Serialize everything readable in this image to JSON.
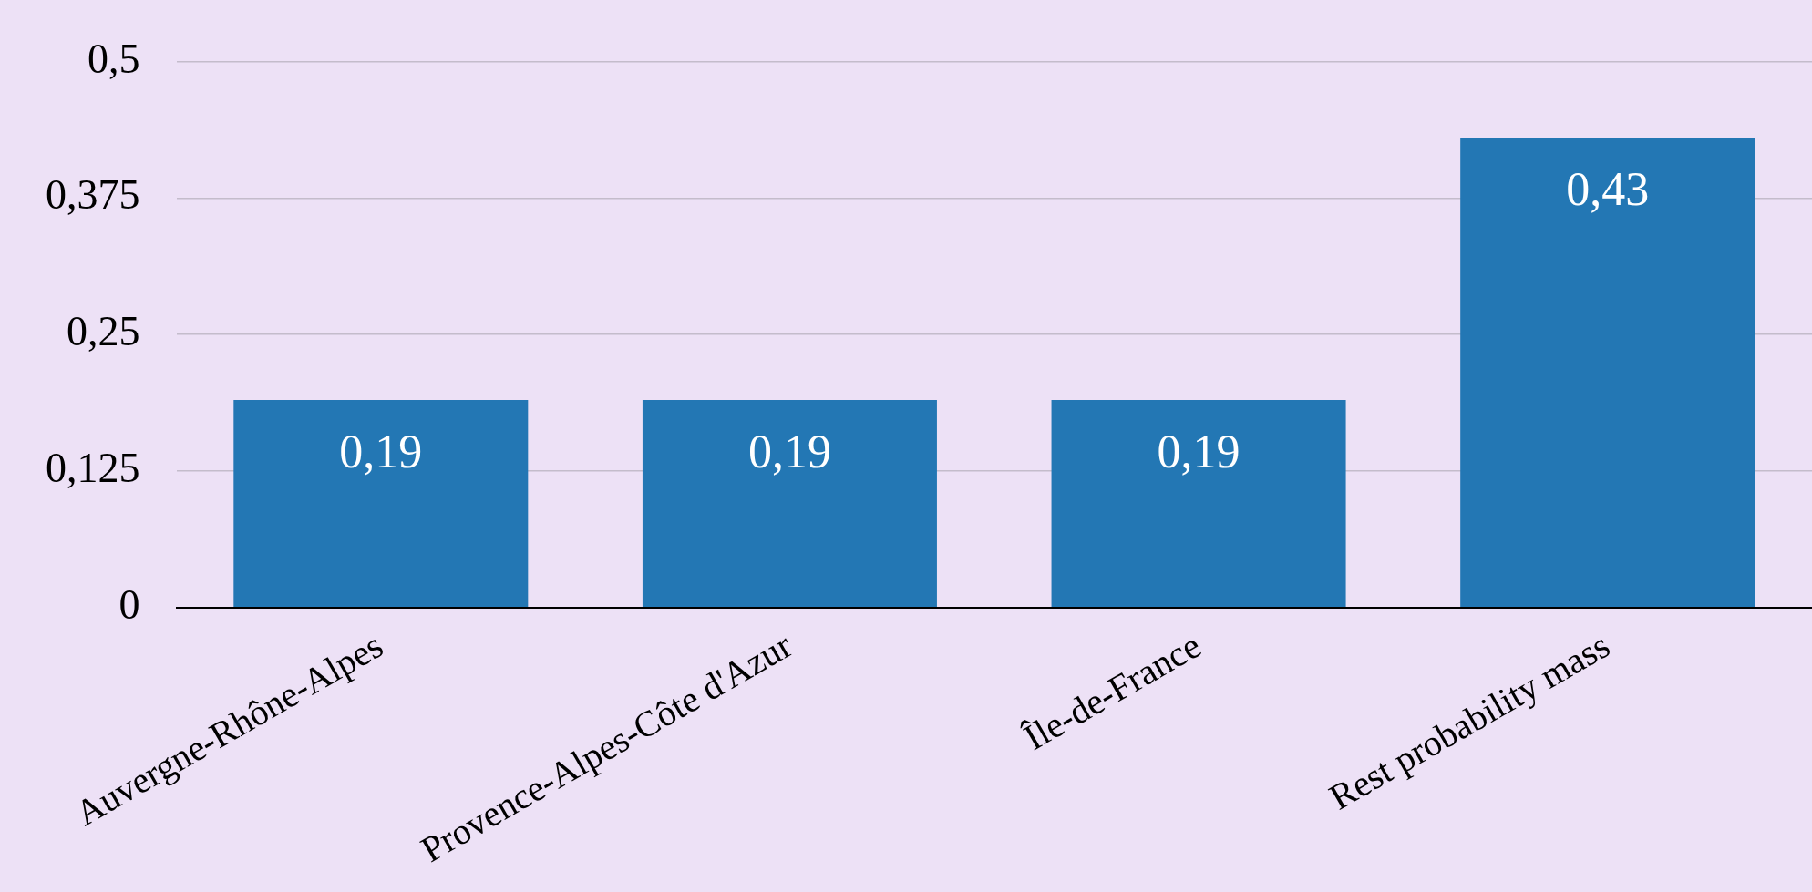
{
  "chart_data": {
    "type": "bar",
    "categories": [
      "Auvergne-Rhône-Alpes",
      "Provence-Alpes-Côte d'Azur",
      "Île-de-France",
      "Rest probability mass"
    ],
    "values": [
      0.19,
      0.19,
      0.19,
      0.43
    ],
    "value_labels": [
      "0,19",
      "0,19",
      "0,19",
      "0,43"
    ],
    "color": "#2377b4",
    "ylim": [
      0,
      0.5
    ],
    "yticks": [
      {
        "value": 0,
        "label": "0"
      },
      {
        "value": 0.125,
        "label": "0,125"
      },
      {
        "value": 0.25,
        "label": "0,25"
      },
      {
        "value": 0.375,
        "label": "0,375"
      },
      {
        "value": 0.5,
        "label": "0,5"
      }
    ],
    "grid": "y",
    "legend": false
  }
}
